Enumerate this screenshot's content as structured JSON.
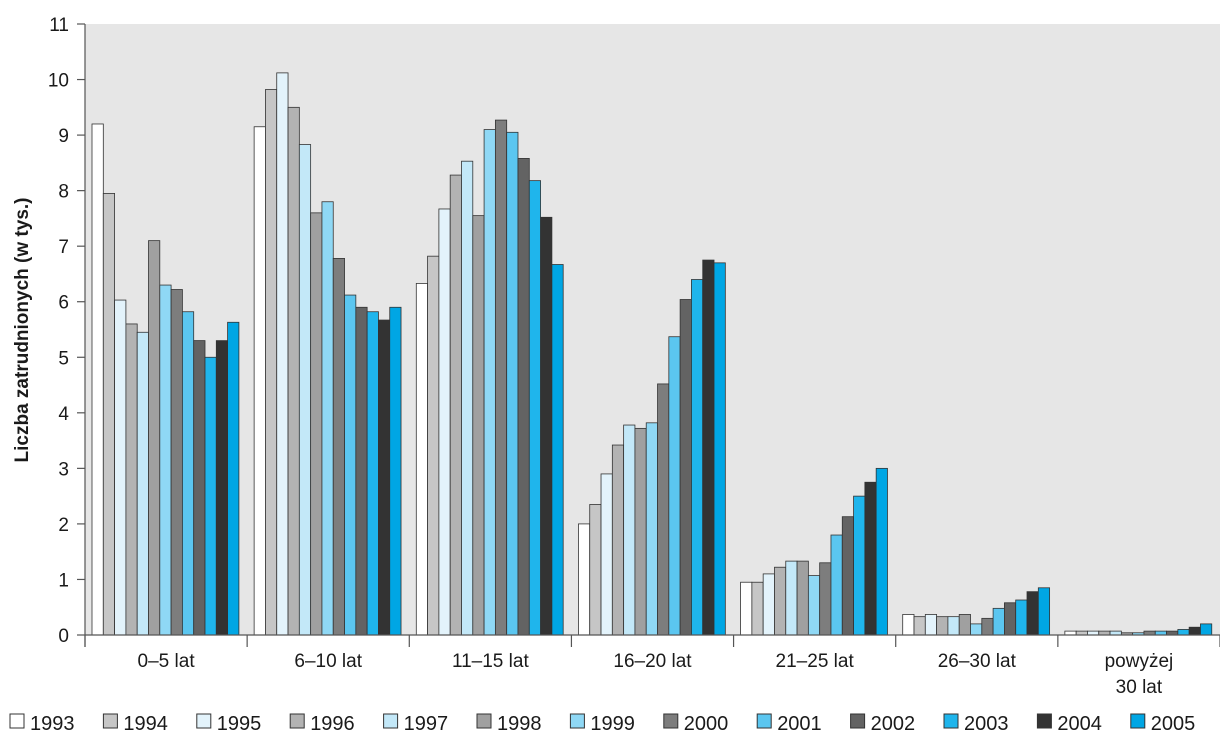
{
  "chart_data": {
    "type": "bar",
    "ylabel": "Liczba zatrudnionych (w tys.)",
    "xlabel": "",
    "ylim": [
      0,
      11
    ],
    "yticks": [
      0,
      1,
      2,
      3,
      4,
      5,
      6,
      7,
      8,
      9,
      10,
      11
    ],
    "grid": false,
    "legend_position": "bottom",
    "categories": [
      "0–5 lat",
      "6–10 lat",
      "11–15 lat",
      "16–20 lat",
      "21–25 lat",
      "26–30 lat",
      "powyżej 30 lat"
    ],
    "category_label_lines": [
      [
        "0–5 lat"
      ],
      [
        "6–10 lat"
      ],
      [
        "11–15 lat"
      ],
      [
        "16–20 lat"
      ],
      [
        "21–25 lat"
      ],
      [
        "26–30 lat"
      ],
      [
        "powyżej",
        "30 lat"
      ]
    ],
    "series": [
      {
        "name": "1993",
        "color": "#ffffff",
        "values": [
          9.2,
          9.15,
          6.33,
          2.0,
          0.95,
          0.37,
          0.07
        ]
      },
      {
        "name": "1994",
        "color": "#c6c6c6",
        "values": [
          7.95,
          9.82,
          6.82,
          2.35,
          0.95,
          0.33,
          0.07
        ]
      },
      {
        "name": "1995",
        "color": "#e3f3fb",
        "values": [
          6.03,
          10.12,
          7.67,
          2.9,
          1.1,
          0.37,
          0.07
        ]
      },
      {
        "name": "1996",
        "color": "#b3b3b3",
        "values": [
          5.6,
          9.5,
          8.28,
          3.42,
          1.22,
          0.33,
          0.07
        ]
      },
      {
        "name": "1997",
        "color": "#c3e8f8",
        "values": [
          5.45,
          8.83,
          8.53,
          3.78,
          1.33,
          0.33,
          0.07
        ]
      },
      {
        "name": "1998",
        "color": "#a0a0a0",
        "values": [
          7.1,
          7.6,
          7.55,
          3.72,
          1.33,
          0.37,
          0.04
        ]
      },
      {
        "name": "1999",
        "color": "#8fd8f5",
        "values": [
          6.3,
          7.8,
          9.1,
          3.82,
          1.07,
          0.2,
          0.04
        ]
      },
      {
        "name": "2000",
        "color": "#7d7d7d",
        "values": [
          6.22,
          6.78,
          9.27,
          4.52,
          1.3,
          0.3,
          0.07
        ]
      },
      {
        "name": "2001",
        "color": "#5bc6f0",
        "values": [
          5.82,
          6.12,
          9.05,
          5.37,
          1.8,
          0.48,
          0.07
        ]
      },
      {
        "name": "2002",
        "color": "#636363",
        "values": [
          5.3,
          5.9,
          8.58,
          6.04,
          2.13,
          0.58,
          0.07
        ]
      },
      {
        "name": "2003",
        "color": "#1fb5ec",
        "values": [
          5.0,
          5.82,
          8.18,
          6.4,
          2.5,
          0.63,
          0.1
        ]
      },
      {
        "name": "2004",
        "color": "#333333",
        "values": [
          5.3,
          5.67,
          7.52,
          6.75,
          2.75,
          0.78,
          0.14
        ]
      },
      {
        "name": "2005",
        "color": "#00a6e4",
        "values": [
          5.63,
          5.9,
          6.67,
          6.7,
          3.0,
          0.85,
          0.2
        ]
      }
    ],
    "plot_background": "#e6e6e6"
  }
}
